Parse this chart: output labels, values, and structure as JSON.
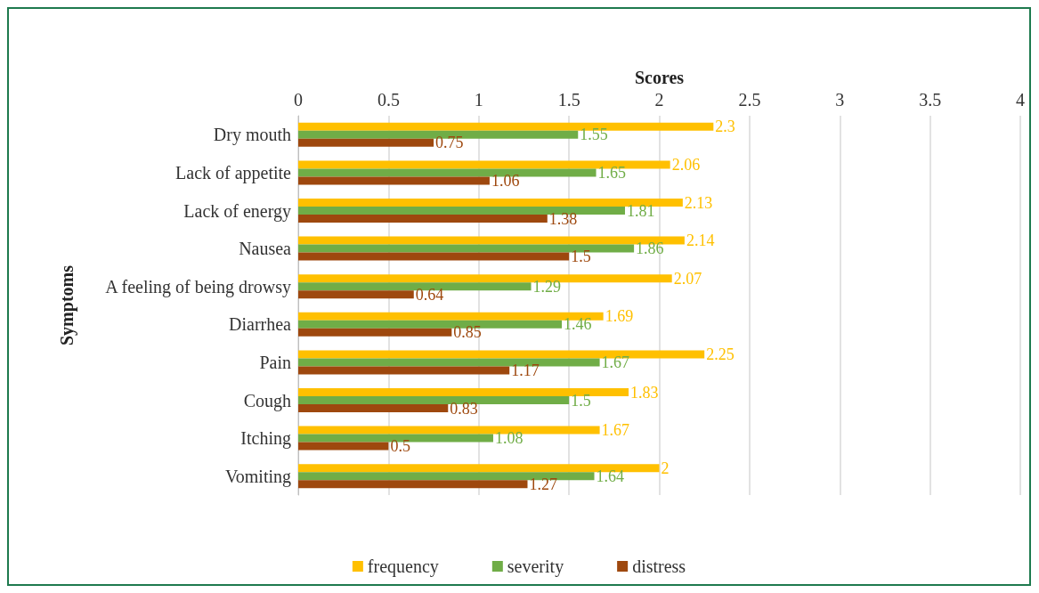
{
  "chart_data": {
    "type": "bar",
    "orientation": "horizontal",
    "xlabel": "Scores",
    "ylabel": "Symptoms",
    "categories": [
      "Dry mouth",
      "Lack of appetite",
      "Lack of energy",
      "Nausea",
      "A feeling of being drowsy",
      "Diarrhea",
      "Pain",
      "Cough",
      "Itching",
      "Vomiting"
    ],
    "series": [
      {
        "name": "frequency",
        "color": "#ffc000",
        "values": [
          2.3,
          2.06,
          2.13,
          2.14,
          2.07,
          1.69,
          2.25,
          1.83,
          1.67,
          2
        ]
      },
      {
        "name": "severity",
        "color": "#70ad47",
        "values": [
          1.55,
          1.65,
          1.81,
          1.86,
          1.29,
          1.46,
          1.67,
          1.5,
          1.08,
          1.64
        ]
      },
      {
        "name": "distress",
        "color": "#9e480e",
        "values": [
          0.75,
          1.06,
          1.38,
          1.5,
          0.64,
          0.85,
          1.17,
          0.83,
          0.5,
          1.27
        ]
      }
    ],
    "xlim": [
      0,
      4
    ],
    "xticks": [
      0,
      0.5,
      1,
      1.5,
      2,
      2.5,
      3,
      3.5,
      4
    ],
    "grid": "x",
    "legend": "bottom",
    "data_labels": true
  }
}
